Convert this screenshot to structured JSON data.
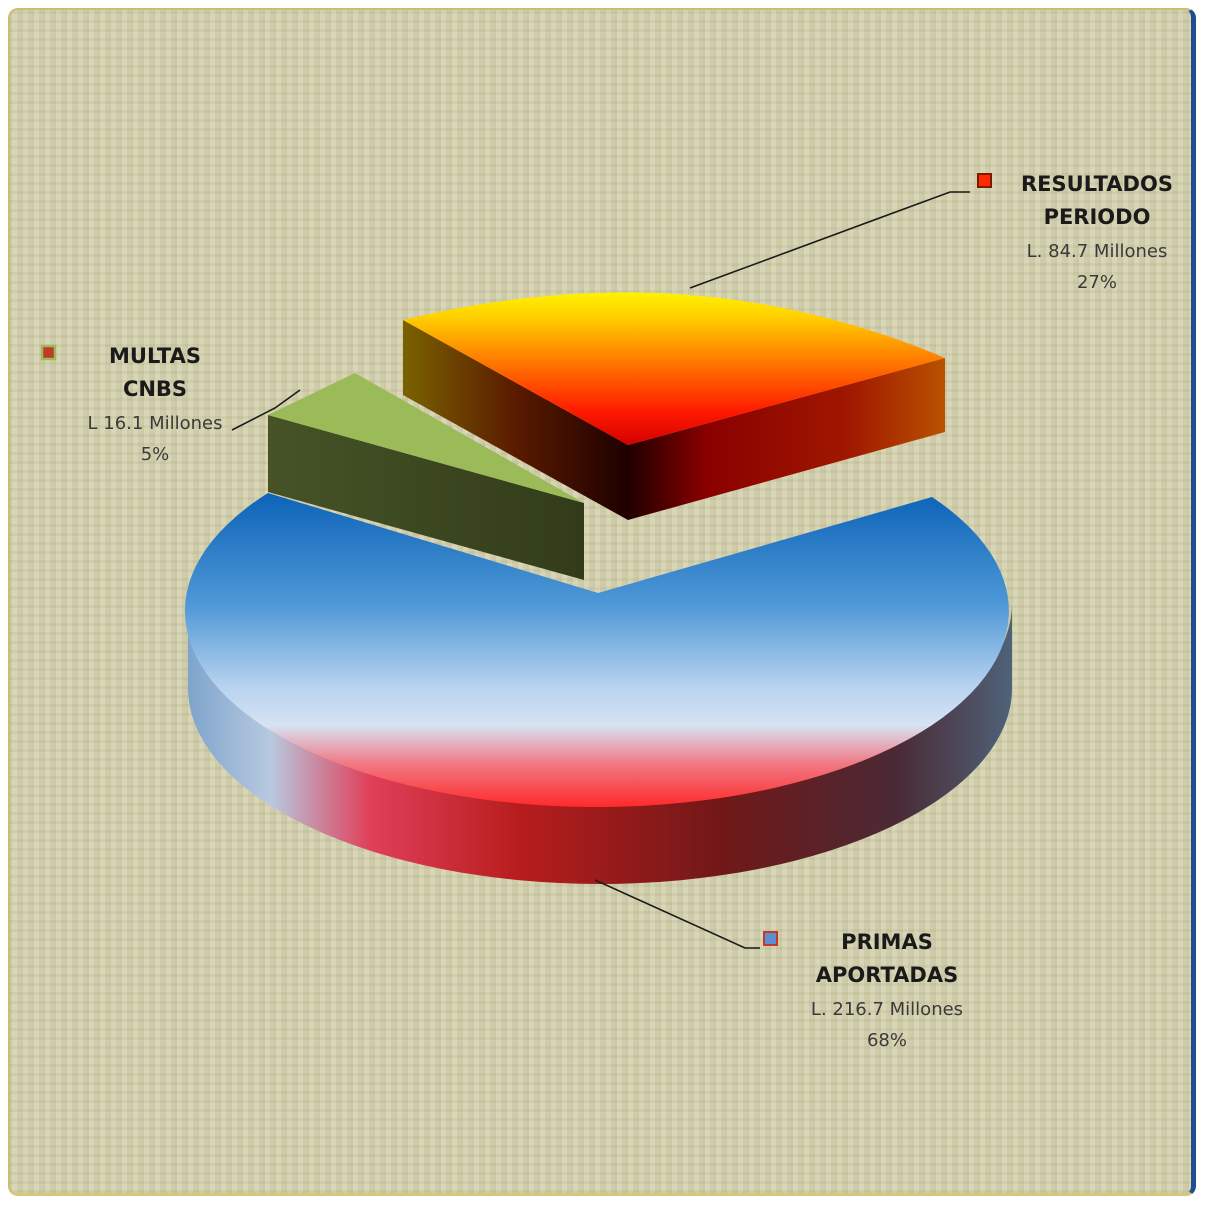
{
  "chart_data": {
    "type": "pie",
    "currency_prefix": "L.",
    "slices": [
      {
        "label_line1": "PRIMAS",
        "label_line2": "APORTADAS",
        "amount_text": "L. 216.7 Millones",
        "percent_text": "68%",
        "value": 216.7,
        "percent": 68,
        "legend_color": "#5b8fd0"
      },
      {
        "label_line1": "MULTAS",
        "label_line2": "CNBS",
        "amount_text": "L 16.1 Millones",
        "percent_text": "5%",
        "value": 16.1,
        "percent": 5,
        "legend_color": "#9bbb59"
      },
      {
        "label_line1": "RESULTADOS",
        "label_line2": "PERIODO",
        "amount_text": "L.  84.7 Millones",
        "percent_text": "27%",
        "value": 84.7,
        "percent": 27,
        "legend_color": "#ff2a00"
      }
    ]
  }
}
